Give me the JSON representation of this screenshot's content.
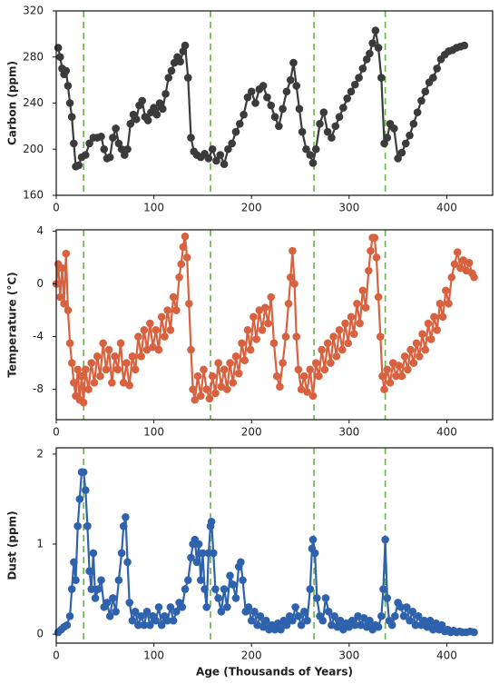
{
  "chart_data": [
    {
      "type": "line",
      "ylabel": "Carbon (ppm)",
      "color": "#3b3b3b",
      "vline_color": "#6ab04c",
      "xlim": [
        0,
        447
      ],
      "xticks": [
        0,
        100,
        200,
        300,
        400
      ],
      "ylim": [
        160,
        320
      ],
      "yticks": [
        160,
        200,
        240,
        280,
        320
      ],
      "vlines": [
        28,
        158,
        264,
        337
      ],
      "x": [
        2,
        4,
        6,
        8,
        10,
        12,
        14,
        16,
        18,
        20,
        23,
        26,
        30,
        34,
        38,
        42,
        46,
        49,
        52,
        55,
        58,
        61,
        64,
        67,
        70,
        73,
        76,
        79,
        82,
        85,
        88,
        91,
        94,
        97,
        100,
        103,
        106,
        109,
        112,
        115,
        118,
        121,
        124,
        127,
        130,
        132,
        135,
        138,
        141,
        144,
        148,
        152,
        156,
        160,
        164,
        168,
        172,
        176,
        180,
        184,
        188,
        192,
        196,
        200,
        204,
        208,
        212,
        216,
        220,
        224,
        228,
        232,
        236,
        240,
        243,
        246,
        249,
        252,
        256,
        260,
        263,
        266,
        270,
        274,
        278,
        282,
        286,
        290,
        294,
        298,
        302,
        306,
        310,
        314,
        318,
        321,
        324,
        327,
        330,
        333,
        336,
        339,
        342,
        346,
        350,
        354,
        358,
        362,
        366,
        370,
        374,
        378,
        382,
        386,
        390,
        394,
        398,
        402,
        406,
        410,
        414,
        418
      ],
      "values": [
        288,
        280,
        270,
        265,
        268,
        255,
        240,
        228,
        205,
        185,
        186,
        193,
        195,
        205,
        210,
        210,
        211,
        200,
        192,
        193,
        210,
        218,
        205,
        200,
        195,
        200,
        222,
        230,
        226,
        238,
        242,
        228,
        225,
        232,
        236,
        230,
        240,
        235,
        248,
        262,
        268,
        275,
        280,
        276,
        285,
        290,
        262,
        210,
        198,
        195,
        193,
        196,
        192,
        200,
        190,
        195,
        187,
        200,
        205,
        215,
        222,
        230,
        245,
        250,
        240,
        252,
        255,
        245,
        238,
        228,
        220,
        235,
        250,
        260,
        275,
        255,
        235,
        215,
        200,
        195,
        188,
        200,
        222,
        232,
        215,
        210,
        220,
        228,
        236,
        244,
        250,
        256,
        262,
        270,
        278,
        283,
        292,
        303,
        288,
        262,
        205,
        210,
        222,
        218,
        192,
        197,
        205,
        212,
        222,
        232,
        242,
        250,
        258,
        262,
        270,
        278,
        282,
        285,
        286,
        288,
        289,
        290
      ]
    },
    {
      "type": "line",
      "ylabel": "Temperature (°C)",
      "color": "#d8623f",
      "vline_color": "#6ab04c",
      "xlim": [
        0,
        447
      ],
      "xticks": [
        0,
        100,
        200,
        300,
        400
      ],
      "ylim": [
        -10.3,
        4.1
      ],
      "yticks": [
        -8,
        -4,
        0,
        4
      ],
      "vlines": [
        28,
        158,
        264,
        337
      ],
      "x": [
        0,
        2,
        4,
        6,
        8,
        10,
        12,
        14,
        16,
        18,
        20,
        22,
        24,
        26,
        28,
        30,
        33,
        36,
        39,
        42,
        45,
        48,
        51,
        54,
        57,
        60,
        63,
        66,
        69,
        72,
        75,
        78,
        81,
        84,
        87,
        90,
        93,
        96,
        99,
        102,
        105,
        108,
        111,
        114,
        117,
        120,
        123,
        126,
        128,
        130,
        132,
        134,
        136,
        138,
        140,
        142,
        145,
        148,
        151,
        154,
        157,
        160,
        163,
        166,
        169,
        172,
        175,
        178,
        181,
        184,
        187,
        190,
        193,
        196,
        199,
        202,
        205,
        208,
        211,
        214,
        217,
        220,
        223,
        226,
        229,
        232,
        235,
        238,
        240,
        242,
        244,
        246,
        248,
        251,
        254,
        257,
        260,
        263,
        266,
        269,
        272,
        275,
        278,
        281,
        284,
        287,
        290,
        293,
        296,
        299,
        302,
        305,
        308,
        311,
        314,
        317,
        320,
        322,
        324,
        326,
        328,
        330,
        332,
        334,
        336,
        339,
        342,
        345,
        348,
        351,
        354,
        357,
        360,
        363,
        366,
        369,
        372,
        375,
        378,
        381,
        384,
        387,
        390,
        393,
        396,
        399,
        402,
        405,
        408,
        411,
        414,
        417,
        420,
        423,
        426,
        428
      ],
      "values": [
        0,
        1.5,
        -1,
        1.2,
        -1.5,
        2.3,
        -2,
        -4.5,
        -6,
        -7.5,
        -8.5,
        -6.5,
        -8.8,
        -7,
        -9,
        -6.5,
        -8,
        -6,
        -7.5,
        -5.5,
        -7,
        -4.5,
        -6.5,
        -5,
        -7.5,
        -5.5,
        -6.5,
        -4.5,
        -7.5,
        -6,
        -7.7,
        -5.5,
        -6.5,
        -4,
        -5.5,
        -3.5,
        -5,
        -3,
        -4.8,
        -3.5,
        -5,
        -2.5,
        -4,
        -2,
        -3.5,
        -1,
        -2,
        0.5,
        1.5,
        2.8,
        3.6,
        2,
        -1.5,
        -5,
        -8,
        -8.8,
        -7,
        -8.5,
        -6.5,
        -8,
        -8.7,
        -7,
        -8.3,
        -6,
        -7.8,
        -6.5,
        -8,
        -6,
        -7.5,
        -5.5,
        -6.8,
        -4.5,
        -5.8,
        -3.5,
        -5,
        -2.5,
        -4.2,
        -2,
        -3.5,
        -1.8,
        -3,
        -1,
        -4.5,
        -7,
        -7.8,
        -6,
        -4,
        -1.5,
        0.5,
        2.5,
        0,
        -4,
        -6.5,
        -8,
        -7,
        -8.2,
        -6.5,
        -8.5,
        -6,
        -7,
        -5,
        -6.5,
        -4.5,
        -6,
        -4,
        -5.5,
        -3.5,
        -5,
        -3,
        -4.5,
        -2.5,
        -3.8,
        -1.5,
        -3,
        -0.5,
        -1.8,
        1,
        2.5,
        3.5,
        3.5,
        2,
        -1,
        -4,
        -7,
        -8,
        -6.5,
        -7.5,
        -6,
        -7,
        -6.2,
        -7,
        -5.5,
        -6.5,
        -5,
        -6,
        -4.5,
        -5.5,
        -3.8,
        -5,
        -3,
        -4.2,
        -2.5,
        -3.5,
        -1.5,
        -2.5,
        -0.5,
        -1.5,
        0.5,
        1.5,
        2.4,
        1.2,
        1.8,
        1,
        1.6,
        0.8,
        0.5
      ]
    },
    {
      "type": "line",
      "ylabel": "Dust (ppm)",
      "xlabel": "Age (Thousands of Years)",
      "color": "#2f62ad",
      "vline_color": "#6ab04c",
      "xlim": [
        0,
        447
      ],
      "xticks": [
        0,
        100,
        200,
        300,
        400
      ],
      "ylim": [
        -0.1,
        2.07
      ],
      "yticks": [
        0,
        1,
        2
      ],
      "vlines": [
        28,
        158,
        264,
        337
      ],
      "x": [
        2,
        5,
        8,
        11,
        14,
        16,
        18,
        20,
        22,
        24,
        26,
        28,
        30,
        32,
        34,
        36,
        38,
        40,
        43,
        46,
        49,
        52,
        55,
        58,
        61,
        64,
        67,
        69,
        71,
        73,
        75,
        78,
        81,
        84,
        87,
        90,
        93,
        96,
        99,
        102,
        105,
        108,
        111,
        114,
        117,
        120,
        123,
        126,
        129,
        132,
        135,
        138,
        140,
        142,
        144,
        146,
        148,
        150,
        152,
        154,
        156,
        158,
        159,
        161,
        163,
        166,
        169,
        172,
        175,
        178,
        181,
        184,
        187,
        189,
        191,
        194,
        197,
        200,
        203,
        206,
        209,
        212,
        215,
        218,
        221,
        224,
        227,
        230,
        233,
        236,
        239,
        242,
        245,
        248,
        251,
        254,
        257,
        260,
        262,
        263,
        265,
        267,
        270,
        273,
        276,
        279,
        282,
        285,
        288,
        291,
        294,
        297,
        300,
        303,
        306,
        309,
        312,
        315,
        318,
        321,
        324,
        327,
        330,
        333,
        335,
        337,
        339,
        341,
        344,
        347,
        350,
        353,
        356,
        359,
        362,
        365,
        368,
        371,
        374,
        377,
        380,
        383,
        386,
        389,
        392,
        395,
        398,
        401,
        404,
        407,
        410,
        413,
        416,
        420,
        424,
        428
      ],
      "values": [
        0.02,
        0.05,
        0.08,
        0.1,
        0.2,
        0.5,
        0.8,
        0.6,
        1.2,
        1.5,
        1.8,
        1.8,
        1.6,
        1.2,
        0.7,
        0.5,
        0.9,
        0.4,
        0.5,
        0.6,
        0.3,
        0.35,
        0.2,
        0.4,
        0.25,
        0.6,
        0.9,
        1.2,
        1.3,
        0.8,
        0.35,
        0.15,
        0.25,
        0.1,
        0.2,
        0.1,
        0.25,
        0.1,
        0.2,
        0.15,
        0.3,
        0.1,
        0.2,
        0.15,
        0.3,
        0.15,
        0.25,
        0.35,
        0.3,
        0.5,
        0.6,
        0.85,
        1.0,
        1.05,
        0.8,
        1.0,
        0.6,
        0.9,
        0.5,
        0.3,
        0.9,
        1.2,
        1.25,
        0.9,
        0.5,
        0.4,
        0.25,
        0.5,
        0.3,
        0.65,
        0.55,
        0.4,
        0.75,
        0.8,
        0.6,
        0.25,
        0.3,
        0.15,
        0.25,
        0.1,
        0.2,
        0.08,
        0.15,
        0.05,
        0.1,
        0.05,
        0.12,
        0.05,
        0.15,
        0.1,
        0.2,
        0.15,
        0.3,
        0.2,
        0.1,
        0.25,
        0.15,
        0.5,
        0.95,
        1.05,
        0.9,
        0.4,
        0.2,
        0.15,
        0.4,
        0.25,
        0.1,
        0.2,
        0.08,
        0.15,
        0.05,
        0.12,
        0.08,
        0.15,
        0.1,
        0.2,
        0.1,
        0.18,
        0.08,
        0.15,
        0.05,
        0.1,
        0.08,
        0.2,
        0.5,
        1.05,
        0.4,
        0.15,
        0.1,
        0.2,
        0.35,
        0.3,
        0.2,
        0.3,
        0.15,
        0.25,
        0.1,
        0.2,
        0.1,
        0.15,
        0.08,
        0.15,
        0.05,
        0.12,
        0.05,
        0.1,
        0.03,
        0.05,
        0.02,
        0.04,
        0.02,
        0.03,
        0.02,
        0.02,
        0.03,
        0.02
      ]
    }
  ]
}
